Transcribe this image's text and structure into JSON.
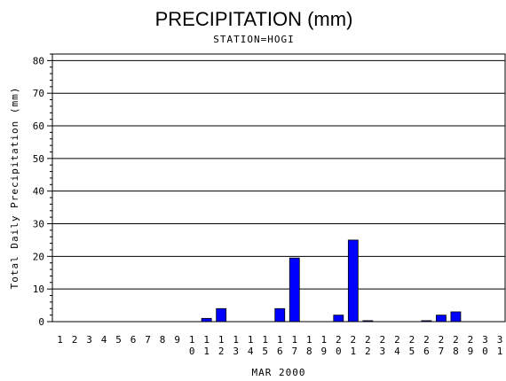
{
  "chart_data": {
    "type": "bar",
    "title": "PRECIPITATION (mm)",
    "subtitle": "STATION=HOGI",
    "xlabel": "MAR 2000",
    "ylabel": "Total Daily Precipitation (mm)",
    "ylim": [
      0,
      82
    ],
    "yticks": [
      0,
      10,
      20,
      30,
      40,
      50,
      60,
      70,
      80
    ],
    "grid": true,
    "bar_color": "#0000ff",
    "categories": [
      "1",
      "2",
      "3",
      "4",
      "5",
      "6",
      "7",
      "8",
      "9",
      "10",
      "11",
      "12",
      "13",
      "14",
      "15",
      "16",
      "17",
      "18",
      "19",
      "20",
      "21",
      "22",
      "23",
      "24",
      "25",
      "26",
      "27",
      "28",
      "29",
      "30",
      "31"
    ],
    "values": [
      0,
      0,
      0,
      0,
      0,
      0,
      0,
      0,
      0,
      0,
      1,
      4,
      0,
      0,
      0,
      4,
      19.5,
      0,
      0,
      2,
      25,
      0.3,
      0,
      0,
      0,
      0.3,
      2,
      3,
      0,
      0,
      0
    ]
  }
}
